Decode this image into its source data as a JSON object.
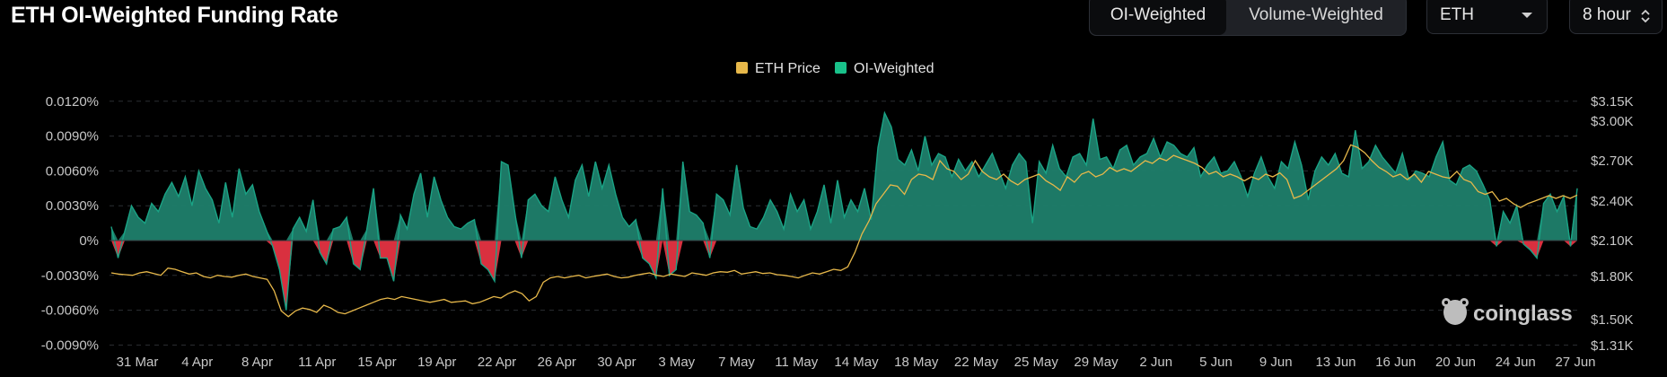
{
  "title": "ETH OI-Weighted Funding Rate",
  "toggle": {
    "options": [
      "OI-Weighted",
      "Volume-Weighted"
    ],
    "selected": "OI-Weighted"
  },
  "coin_select": {
    "value": "ETH"
  },
  "interval_select": {
    "value": "8 hour"
  },
  "watermark": "coinglass",
  "colors": {
    "positive": "#1aa385",
    "positive_fill": "#1f7f6c",
    "negative": "#d9303f",
    "price": "#e7b84a",
    "background": "#000000",
    "grid": "#2b2e33"
  },
  "icons": {
    "select_caret": "chevron-down-icon",
    "interval_arrows": "up-down-icon",
    "watermark_logo": "frog-logo-icon"
  },
  "chart_data": {
    "type": "area",
    "legend": [
      "ETH Price",
      "OI-Weighted"
    ],
    "legend_position": "top-center",
    "grid": true,
    "x_ticks": [
      "31 Mar",
      "4 Apr",
      "8 Apr",
      "11 Apr",
      "15 Apr",
      "19 Apr",
      "22 Apr",
      "26 Apr",
      "30 Apr",
      "3 May",
      "7 May",
      "11 May",
      "14 May",
      "18 May",
      "22 May",
      "25 May",
      "29 May",
      "2 Jun",
      "5 Jun",
      "9 Jun",
      "13 Jun",
      "16 Jun",
      "20 Jun",
      "24 Jun",
      "27 Jun"
    ],
    "y_left": {
      "label": "",
      "ticks": [
        "0.0120%",
        "0.0090%",
        "0.0060%",
        "0.0030%",
        "0%",
        "-0.0030%",
        "-0.0060%",
        "-0.0090%"
      ],
      "range": [
        -0.009,
        0.012
      ]
    },
    "y_right": {
      "label": "",
      "ticks": [
        "$3.15K",
        "$3.00K",
        "$2.70K",
        "$2.40K",
        "$2.10K",
        "$1.80K",
        "$1.50K",
        "$1.31K"
      ],
      "range": [
        1310,
        3150
      ]
    },
    "series": [
      {
        "name": "OI-Weighted",
        "axis": "left",
        "unit": "%",
        "values": [
          0.0012,
          -0.0015,
          0.0008,
          0.003,
          0.002,
          0.0015,
          0.0032,
          0.0025,
          0.004,
          0.005,
          0.0038,
          0.0055,
          0.003,
          0.006,
          0.0045,
          0.0035,
          0.0015,
          0.005,
          0.002,
          0.0062,
          0.004,
          0.0048,
          0.0025,
          0.001,
          -0.0005,
          -0.0025,
          -0.006,
          0.001,
          0.002,
          0.0008,
          0.0035,
          -0.001,
          -0.002,
          0.001,
          0.0012,
          0.002,
          -0.002,
          -0.0025,
          0.001,
          0.0045,
          -0.0015,
          -0.0015,
          -0.0035,
          0.0022,
          0.001,
          0.004,
          0.0058,
          0.002,
          0.0055,
          0.0035,
          0.002,
          0.0012,
          0.001,
          0.0015,
          0.0018,
          -0.002,
          -0.0025,
          -0.0035,
          0.0068,
          0.0065,
          0.0025,
          -0.0015,
          0.0035,
          0.004,
          0.003,
          0.0025,
          0.0055,
          0.0035,
          0.002,
          0.0052,
          0.0065,
          0.0038,
          0.0068,
          0.0045,
          0.0065,
          0.004,
          0.002,
          0.0012,
          0.0018,
          -0.0015,
          -0.002,
          -0.0032,
          0.0045,
          -0.003,
          -0.0025,
          0.0068,
          0.0025,
          0.0022,
          0.0015,
          -0.0015,
          0.004,
          0.0035,
          0.0022,
          0.0065,
          0.0028,
          0.0012,
          0.001,
          0.002,
          0.0035,
          0.0025,
          0.001,
          0.004,
          0.0025,
          0.0035,
          0.001,
          0.0025,
          0.0048,
          0.0015,
          0.0052,
          0.002,
          0.0035,
          0.0025,
          0.0045,
          0.0018,
          0.008,
          0.011,
          0.0098,
          0.007,
          0.0065,
          0.0078,
          0.006,
          0.009,
          0.0065,
          0.0075,
          0.0072,
          0.0055,
          0.007,
          0.006,
          0.0068,
          0.0055,
          0.0065,
          0.0075,
          0.006,
          0.0045,
          0.0065,
          0.0075,
          0.0068,
          0.0015,
          0.0068,
          0.0058,
          0.0082,
          0.0062,
          0.0055,
          0.0072,
          0.0075,
          0.0065,
          0.0105,
          0.007,
          0.0072,
          0.0062,
          0.0078,
          0.0082,
          0.0065,
          0.0072,
          0.0075,
          0.0088,
          0.0072,
          0.0085,
          0.0082,
          0.0075,
          0.0072,
          0.008,
          0.0055,
          0.0065,
          0.0072,
          0.0058,
          0.006,
          0.0068,
          0.0055,
          0.0038,
          0.0058,
          0.0072,
          0.0055,
          0.0045,
          0.0068,
          0.0062,
          0.0085,
          0.0065,
          0.0035,
          0.006,
          0.0072,
          0.0065,
          0.0075,
          0.0058,
          0.0055,
          0.0095,
          0.0062,
          0.0068,
          0.0082,
          0.0072,
          0.0065,
          0.0058,
          0.0075,
          0.0052,
          0.006,
          0.0058,
          0.0055,
          0.0072,
          0.0085,
          0.0052,
          0.0048,
          0.0062,
          0.0065,
          0.006,
          0.0048,
          0.0035,
          -0.0005,
          0.0025,
          0.0015,
          0.003,
          -0.0003,
          -0.0008,
          -0.0015,
          0.0032,
          0.004,
          0.0025,
          0.0038,
          -0.0005,
          0.0045
        ]
      },
      {
        "name": "ETH Price",
        "axis": "right",
        "unit": "$",
        "values": [
          1830,
          1820,
          1815,
          1810,
          1830,
          1840,
          1825,
          1810,
          1870,
          1860,
          1840,
          1820,
          1830,
          1800,
          1790,
          1810,
          1800,
          1795,
          1810,
          1820,
          1800,
          1790,
          1780,
          1700,
          1560,
          1520,
          1560,
          1580,
          1570,
          1550,
          1600,
          1580,
          1550,
          1540,
          1560,
          1580,
          1600,
          1620,
          1640,
          1650,
          1640,
          1660,
          1650,
          1640,
          1630,
          1620,
          1630,
          1640,
          1620,
          1625,
          1630,
          1610,
          1620,
          1640,
          1660,
          1650,
          1680,
          1700,
          1680,
          1630,
          1660,
          1760,
          1790,
          1800,
          1790,
          1800,
          1810,
          1790,
          1800,
          1810,
          1820,
          1800,
          1790,
          1795,
          1810,
          1820,
          1830,
          1810,
          1800,
          1820,
          1810,
          1800,
          1830,
          1820,
          1810,
          1830,
          1840,
          1835,
          1850,
          1820,
          1830,
          1840,
          1825,
          1830,
          1815,
          1810,
          1800,
          1790,
          1810,
          1830,
          1820,
          1840,
          1860,
          1850,
          1880,
          2000,
          2150,
          2250,
          2380,
          2450,
          2520,
          2510,
          2450,
          2560,
          2600,
          2590,
          2560,
          2700,
          2640,
          2620,
          2560,
          2600,
          2700,
          2620,
          2580,
          2560,
          2600,
          2550,
          2520,
          2560,
          2580,
          2600,
          2550,
          2520,
          2480,
          2580,
          2540,
          2600,
          2620,
          2580,
          2600,
          2650,
          2620,
          2640,
          2620,
          2660,
          2700,
          2680,
          2720,
          2700,
          2740,
          2720,
          2700,
          2680,
          2650,
          2600,
          2620,
          2580,
          2600,
          2580,
          2550,
          2580,
          2560,
          2600,
          2580,
          2610,
          2560,
          2420,
          2440,
          2480,
          2520,
          2560,
          2600,
          2640,
          2700,
          2820,
          2800,
          2760,
          2700,
          2650,
          2620,
          2580,
          2600,
          2560,
          2600,
          2540,
          2620,
          2600,
          2580,
          2570,
          2620,
          2560,
          2540,
          2470,
          2450,
          2470,
          2400,
          2420,
          2380,
          2350,
          2380,
          2400,
          2420,
          2440,
          2420,
          2440,
          2420,
          2445
        ]
      }
    ]
  }
}
